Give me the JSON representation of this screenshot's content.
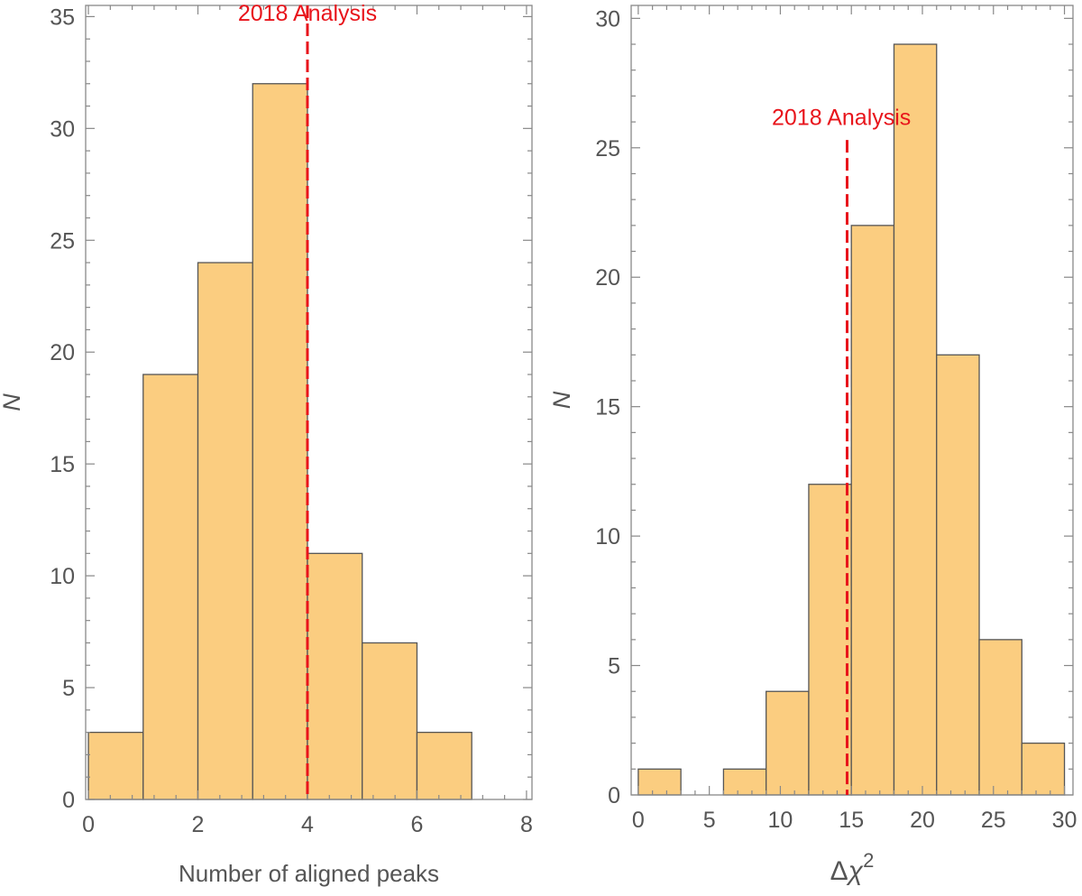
{
  "chart_data": [
    {
      "type": "bar",
      "bin_edges": [
        0,
        1,
        2,
        3,
        4,
        5,
        6,
        7
      ],
      "values": [
        3,
        19,
        24,
        32,
        11,
        7,
        3
      ],
      "xlabel": "Number of aligned peaks",
      "ylabel": "N",
      "xlim": [
        -0.05,
        8.1
      ],
      "ylim": [
        0,
        35.5
      ],
      "xticks": [
        0,
        2,
        4,
        6,
        8
      ],
      "yticks": [
        0,
        5,
        10,
        15,
        20,
        25,
        30,
        35
      ],
      "grid": false,
      "reference_line": {
        "x": 4,
        "label": "2018 Analysis",
        "color": "#e8141b",
        "label_x": 4,
        "label_y": 34.5
      }
    },
    {
      "type": "bar",
      "bin_edges": [
        0,
        3,
        6,
        9,
        12,
        15,
        18,
        21,
        24,
        27,
        30
      ],
      "values": [
        1,
        0,
        1,
        4,
        12,
        22,
        29,
        17,
        6,
        2
      ],
      "xlabel": "Δχ²",
      "ylabel": "N",
      "xlim": [
        -0.5,
        30.6
      ],
      "ylim": [
        0,
        30.5
      ],
      "xticks": [
        0,
        5,
        10,
        15,
        20,
        25,
        30
      ],
      "yticks": [
        0,
        5,
        10,
        15,
        20,
        25,
        30
      ],
      "grid": false,
      "reference_line": {
        "x": 14.7,
        "label": "2018 Analysis",
        "color": "#e8141b",
        "label_x": 14.3,
        "label_y": 25.6,
        "top": 25.3
      }
    }
  ],
  "colors": {
    "bar_fill": "#fbcd80",
    "bar_stroke": "#555555",
    "axis": "#888888",
    "tick_text": "#555555"
  }
}
